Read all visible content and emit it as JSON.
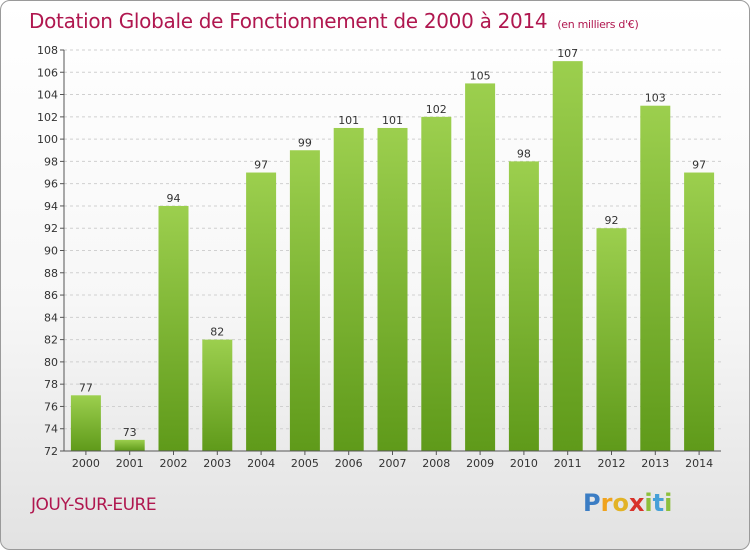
{
  "chart_data": {
    "type": "bar",
    "title": "Dotation Globale de Fonctionnement de 2000 à 2014",
    "unit": "(en milliers d'€)",
    "categories": [
      "2000",
      "2001",
      "2002",
      "2003",
      "2004",
      "2005",
      "2006",
      "2007",
      "2008",
      "2009",
      "2010",
      "2011",
      "2012",
      "2013",
      "2014"
    ],
    "values": [
      77,
      73,
      94,
      82,
      97,
      99,
      101,
      101,
      102,
      105,
      98,
      107,
      92,
      103,
      97
    ],
    "ylim": [
      72,
      108
    ],
    "yticks": [
      72,
      74,
      76,
      78,
      80,
      82,
      84,
      86,
      88,
      90,
      92,
      94,
      96,
      98,
      100,
      102,
      104,
      106,
      108
    ],
    "bar_color_top": "#9ccf4e",
    "bar_color_bottom": "#5f9a1a",
    "grid": true
  },
  "commune": "JOUY-SUR-EURE",
  "logo": {
    "letters": [
      "P",
      "r",
      "o",
      "x",
      "i",
      "t",
      "i"
    ],
    "colors": [
      "#3b7dc4",
      "#f0a31e",
      "#e2b326",
      "#d8322a",
      "#8dbf3c",
      "#46a0d8",
      "#8dbf3c"
    ]
  }
}
